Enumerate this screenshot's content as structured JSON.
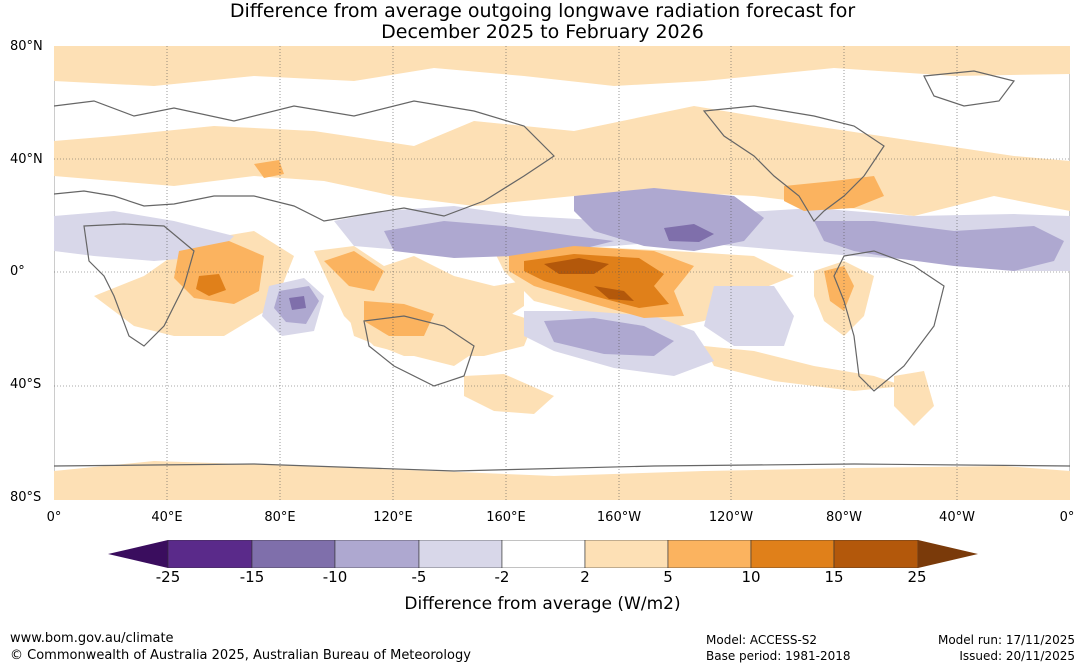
{
  "title_line1": "Difference from average outgoing longwave radiation forecast for",
  "title_line2": "December 2025 to February 2026",
  "map": {
    "lat_labels": [
      "80°N",
      "40°N",
      "0°",
      "40°S",
      "80°S"
    ],
    "lon_labels": [
      "0°",
      "40°E",
      "80°E",
      "120°E",
      "160°E",
      "160°W",
      "120°W",
      "80°W",
      "40°W",
      "0°"
    ]
  },
  "colorbar": {
    "ticks": [
      "-25",
      "-15",
      "-10",
      "-5",
      "-2",
      "2",
      "5",
      "10",
      "15",
      "25"
    ],
    "colors": [
      "#3a0d5e",
      "#5a2a8a",
      "#7f6fab",
      "#aea8d0",
      "#d8d7e9",
      "#ffffff",
      "#fde0b5",
      "#fbb35f",
      "#e0801a",
      "#b3580b",
      "#7a3a0a"
    ],
    "label": "Difference from average (W/m2)"
  },
  "footer": {
    "website": "www.bom.gov.au/climate",
    "copyright": "© Commonwealth of Australia 2025, Australian Bureau of Meteorology",
    "model": "Model: ACCESS-S2",
    "base_period": "Base period: 1981-2018",
    "model_run": "Model run: 17/11/2025",
    "issued": "Issued: 20/11/2025"
  }
}
